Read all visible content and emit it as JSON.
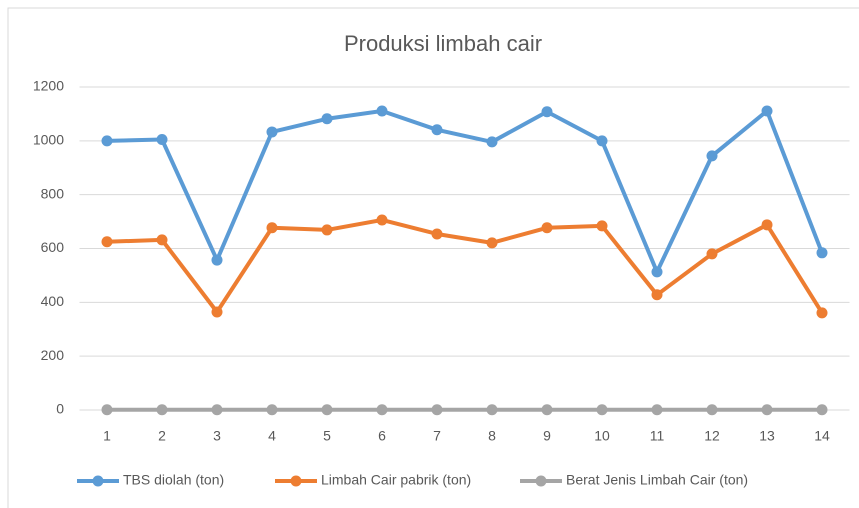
{
  "chart_data": {
    "type": "line",
    "title": "Produksi limbah cair",
    "categories": [
      "1",
      "2",
      "3",
      "4",
      "5",
      "6",
      "7",
      "8",
      "9",
      "10",
      "11",
      "12",
      "13",
      "14"
    ],
    "series": [
      {
        "name": "TBS diolah (ton)",
        "color": "#5b9bd5",
        "values": [
          1000,
          1005,
          557,
          1033,
          1082,
          1111,
          1041,
          996,
          1108,
          1000,
          513,
          944,
          1111,
          584
        ]
      },
      {
        "name": "Limbah Cair pabrik (ton)",
        "color": "#ed7d31",
        "values": [
          625,
          632,
          364,
          677,
          669,
          706,
          654,
          621,
          677,
          684,
          428,
          580,
          688,
          361
        ]
      },
      {
        "name": "Berat Jenis Limbah Cair (ton)",
        "color": "#a5a5a5",
        "values": [
          1,
          1,
          1,
          1,
          1,
          1,
          1,
          1,
          1,
          1,
          1,
          1,
          1,
          1
        ]
      }
    ],
    "ylim": [
      0,
      1200
    ],
    "yticks": [
      0,
      200,
      400,
      600,
      800,
      1000,
      1200
    ],
    "grid": true,
    "legend": "bottom"
  }
}
